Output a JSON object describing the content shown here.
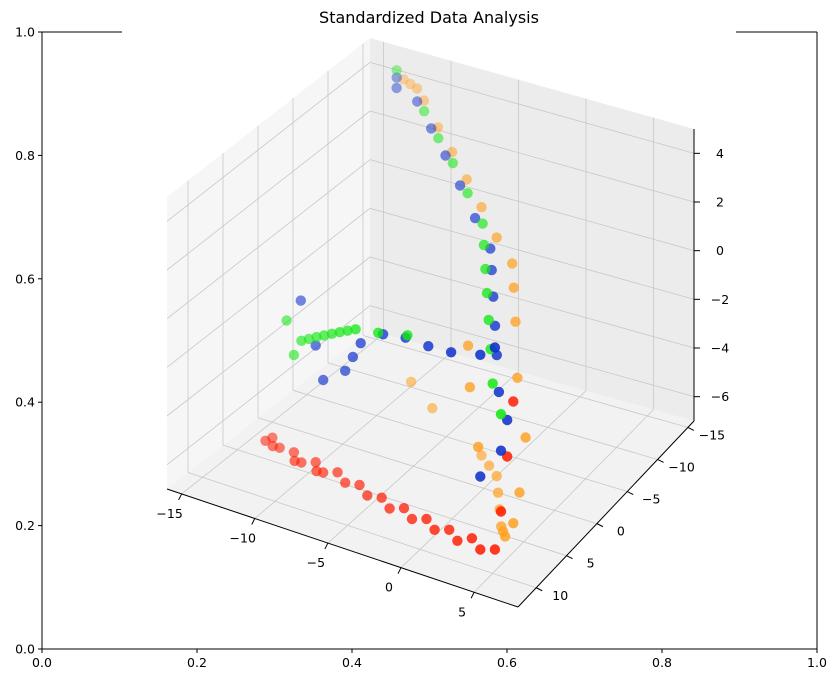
{
  "chart_data": {
    "type": "scatter",
    "title": "Standardized Data Analysis",
    "dimensions": "3d",
    "outer_axes": {
      "xticks": [
        "0.0",
        "0.2",
        "0.4",
        "0.6",
        "0.8",
        "1.0"
      ],
      "yticks": [
        "0.0",
        "0.2",
        "0.4",
        "0.6",
        "0.8",
        "1.0"
      ],
      "xlim": [
        0,
        1
      ],
      "ylim": [
        0,
        1
      ]
    },
    "axes3d": {
      "x": {
        "ticks": [
          "−15",
          "−10",
          "−5",
          "0",
          "5"
        ],
        "range": [
          -16,
          8
        ]
      },
      "y": {
        "ticks": [
          "−15",
          "−10",
          "−5",
          "0",
          "5",
          "10"
        ],
        "range": [
          -16,
          13
        ]
      },
      "z": {
        "ticks": [
          "−6",
          "−4",
          "−2",
          "0",
          "2",
          "4"
        ],
        "range": [
          -7,
          5
        ]
      },
      "grid": true
    },
    "series": [
      {
        "color": "#ff1a00",
        "points": [
          [
            -14,
            2,
            -7
          ],
          [
            -13,
            3,
            -7
          ],
          [
            -12,
            3,
            -7
          ],
          [
            -11,
            4,
            -7
          ],
          [
            -10,
            4,
            -6.8
          ],
          [
            -9,
            5,
            -6.8
          ],
          [
            -8,
            5,
            -6.6
          ],
          [
            -7,
            6,
            -6.6
          ],
          [
            -6,
            6,
            -6.5
          ],
          [
            -5,
            7,
            -6.5
          ],
          [
            -4,
            7,
            -6.4
          ],
          [
            -3,
            8,
            -6.4
          ],
          [
            -2,
            8,
            -6.2
          ],
          [
            -1,
            9,
            -6.2
          ],
          [
            0,
            9,
            -6
          ],
          [
            1,
            10,
            -6
          ],
          [
            2,
            10,
            -5.8
          ],
          [
            3,
            11,
            -5.8
          ],
          [
            4,
            11,
            -5.5
          ],
          [
            5,
            12,
            -5.5
          ],
          [
            6,
            12,
            -5.3
          ],
          [
            6,
            11,
            -4
          ],
          [
            6,
            10,
            -2
          ],
          [
            6,
            9,
            0
          ],
          [
            -14,
            3,
            -6.9
          ],
          [
            -13,
            4,
            -6.7
          ],
          [
            -11,
            5,
            -6.7
          ],
          [
            -9,
            6,
            -6.5
          ]
        ]
      },
      {
        "color": "#ffa020",
        "points": [
          [
            -13,
            -15,
            4
          ],
          [
            -12,
            -14,
            4.2
          ],
          [
            -11,
            -13,
            4.4
          ],
          [
            -10,
            -12,
            4.3
          ],
          [
            -8,
            -10,
            4
          ],
          [
            -6,
            -8,
            3.8
          ],
          [
            -4,
            -6,
            3.5
          ],
          [
            -2,
            -4,
            3.2
          ],
          [
            0,
            -2,
            2.8
          ],
          [
            2,
            0,
            2.6
          ],
          [
            3,
            2,
            2.3
          ],
          [
            4,
            4,
            1.6
          ],
          [
            5,
            6,
            0
          ],
          [
            6,
            7,
            -2
          ],
          [
            6,
            8,
            -4
          ],
          [
            6,
            9,
            -5
          ],
          [
            5,
            8,
            -6
          ],
          [
            4,
            6,
            -6.5
          ],
          [
            3,
            4,
            -7
          ],
          [
            2,
            2,
            -7
          ],
          [
            1,
            0,
            -7
          ],
          [
            0,
            -2,
            -7
          ],
          [
            -1,
            -3,
            -7
          ],
          [
            -2,
            -4,
            -7
          ],
          [
            -6,
            -5,
            -6
          ],
          [
            -8,
            -6,
            -5.5
          ],
          [
            4,
            10,
            -2
          ],
          [
            3,
            9,
            0
          ],
          [
            2,
            7,
            1
          ]
        ]
      },
      {
        "color": "#0a2ccc",
        "points": [
          [
            -13,
            -14,
            4.3
          ],
          [
            -12,
            -12,
            4.5
          ],
          [
            -10,
            -11,
            4.5
          ],
          [
            -8,
            -9,
            4.2
          ],
          [
            -6,
            -7,
            3.9
          ],
          [
            -4,
            -5,
            3.5
          ],
          [
            -2,
            -3,
            3.0
          ],
          [
            0,
            -1,
            2.6
          ],
          [
            1,
            1,
            2.4
          ],
          [
            2,
            3,
            2.0
          ],
          [
            3,
            5,
            1.5
          ],
          [
            4,
            7,
            1.0
          ],
          [
            5,
            9,
            0.2
          ],
          [
            6,
            10,
            -0.5
          ],
          [
            6,
            11,
            -1.5
          ],
          [
            5,
            12,
            -2.5
          ],
          [
            -12,
            2,
            -1
          ],
          [
            -10,
            4,
            -2
          ],
          [
            -9,
            5,
            -3
          ],
          [
            -7,
            6,
            -2
          ],
          [
            -6,
            7,
            -1
          ],
          [
            -5,
            8,
            0
          ],
          [
            -3,
            9,
            1
          ],
          [
            -1,
            10,
            1.5
          ],
          [
            1,
            11,
            1.8
          ],
          [
            3,
            12,
            2.2
          ],
          [
            5,
            12,
            2.5
          ],
          [
            6,
            12,
            3.0
          ]
        ]
      },
      {
        "color": "#12e812",
        "points": [
          [
            -13,
            -14,
            4.6
          ],
          [
            -9,
            -10,
            4.5
          ],
          [
            -7,
            -8,
            4.2
          ],
          [
            -5,
            -6,
            4.0
          ],
          [
            -3,
            -4,
            3.6
          ],
          [
            -1,
            -2,
            3.2
          ],
          [
            0,
            0,
            3.0
          ],
          [
            1,
            2,
            2.7
          ],
          [
            2,
            4,
            2.4
          ],
          [
            3,
            6,
            2.0
          ],
          [
            4,
            8,
            1.5
          ],
          [
            5,
            10,
            0.8
          ],
          [
            6,
            11,
            0
          ],
          [
            -13,
            2,
            -2
          ],
          [
            -12,
            3,
            -3
          ],
          [
            -11,
            4,
            -2
          ],
          [
            -10,
            5,
            -1.5
          ],
          [
            -9,
            6,
            -1
          ],
          [
            -8,
            7,
            -0.5
          ],
          [
            -7,
            8,
            0
          ],
          [
            -6,
            9,
            0.5
          ],
          [
            -5,
            10,
            1
          ],
          [
            -4,
            11,
            1.5
          ],
          [
            -2,
            12,
            2
          ],
          [
            0,
            12,
            2.3
          ]
        ]
      }
    ]
  }
}
